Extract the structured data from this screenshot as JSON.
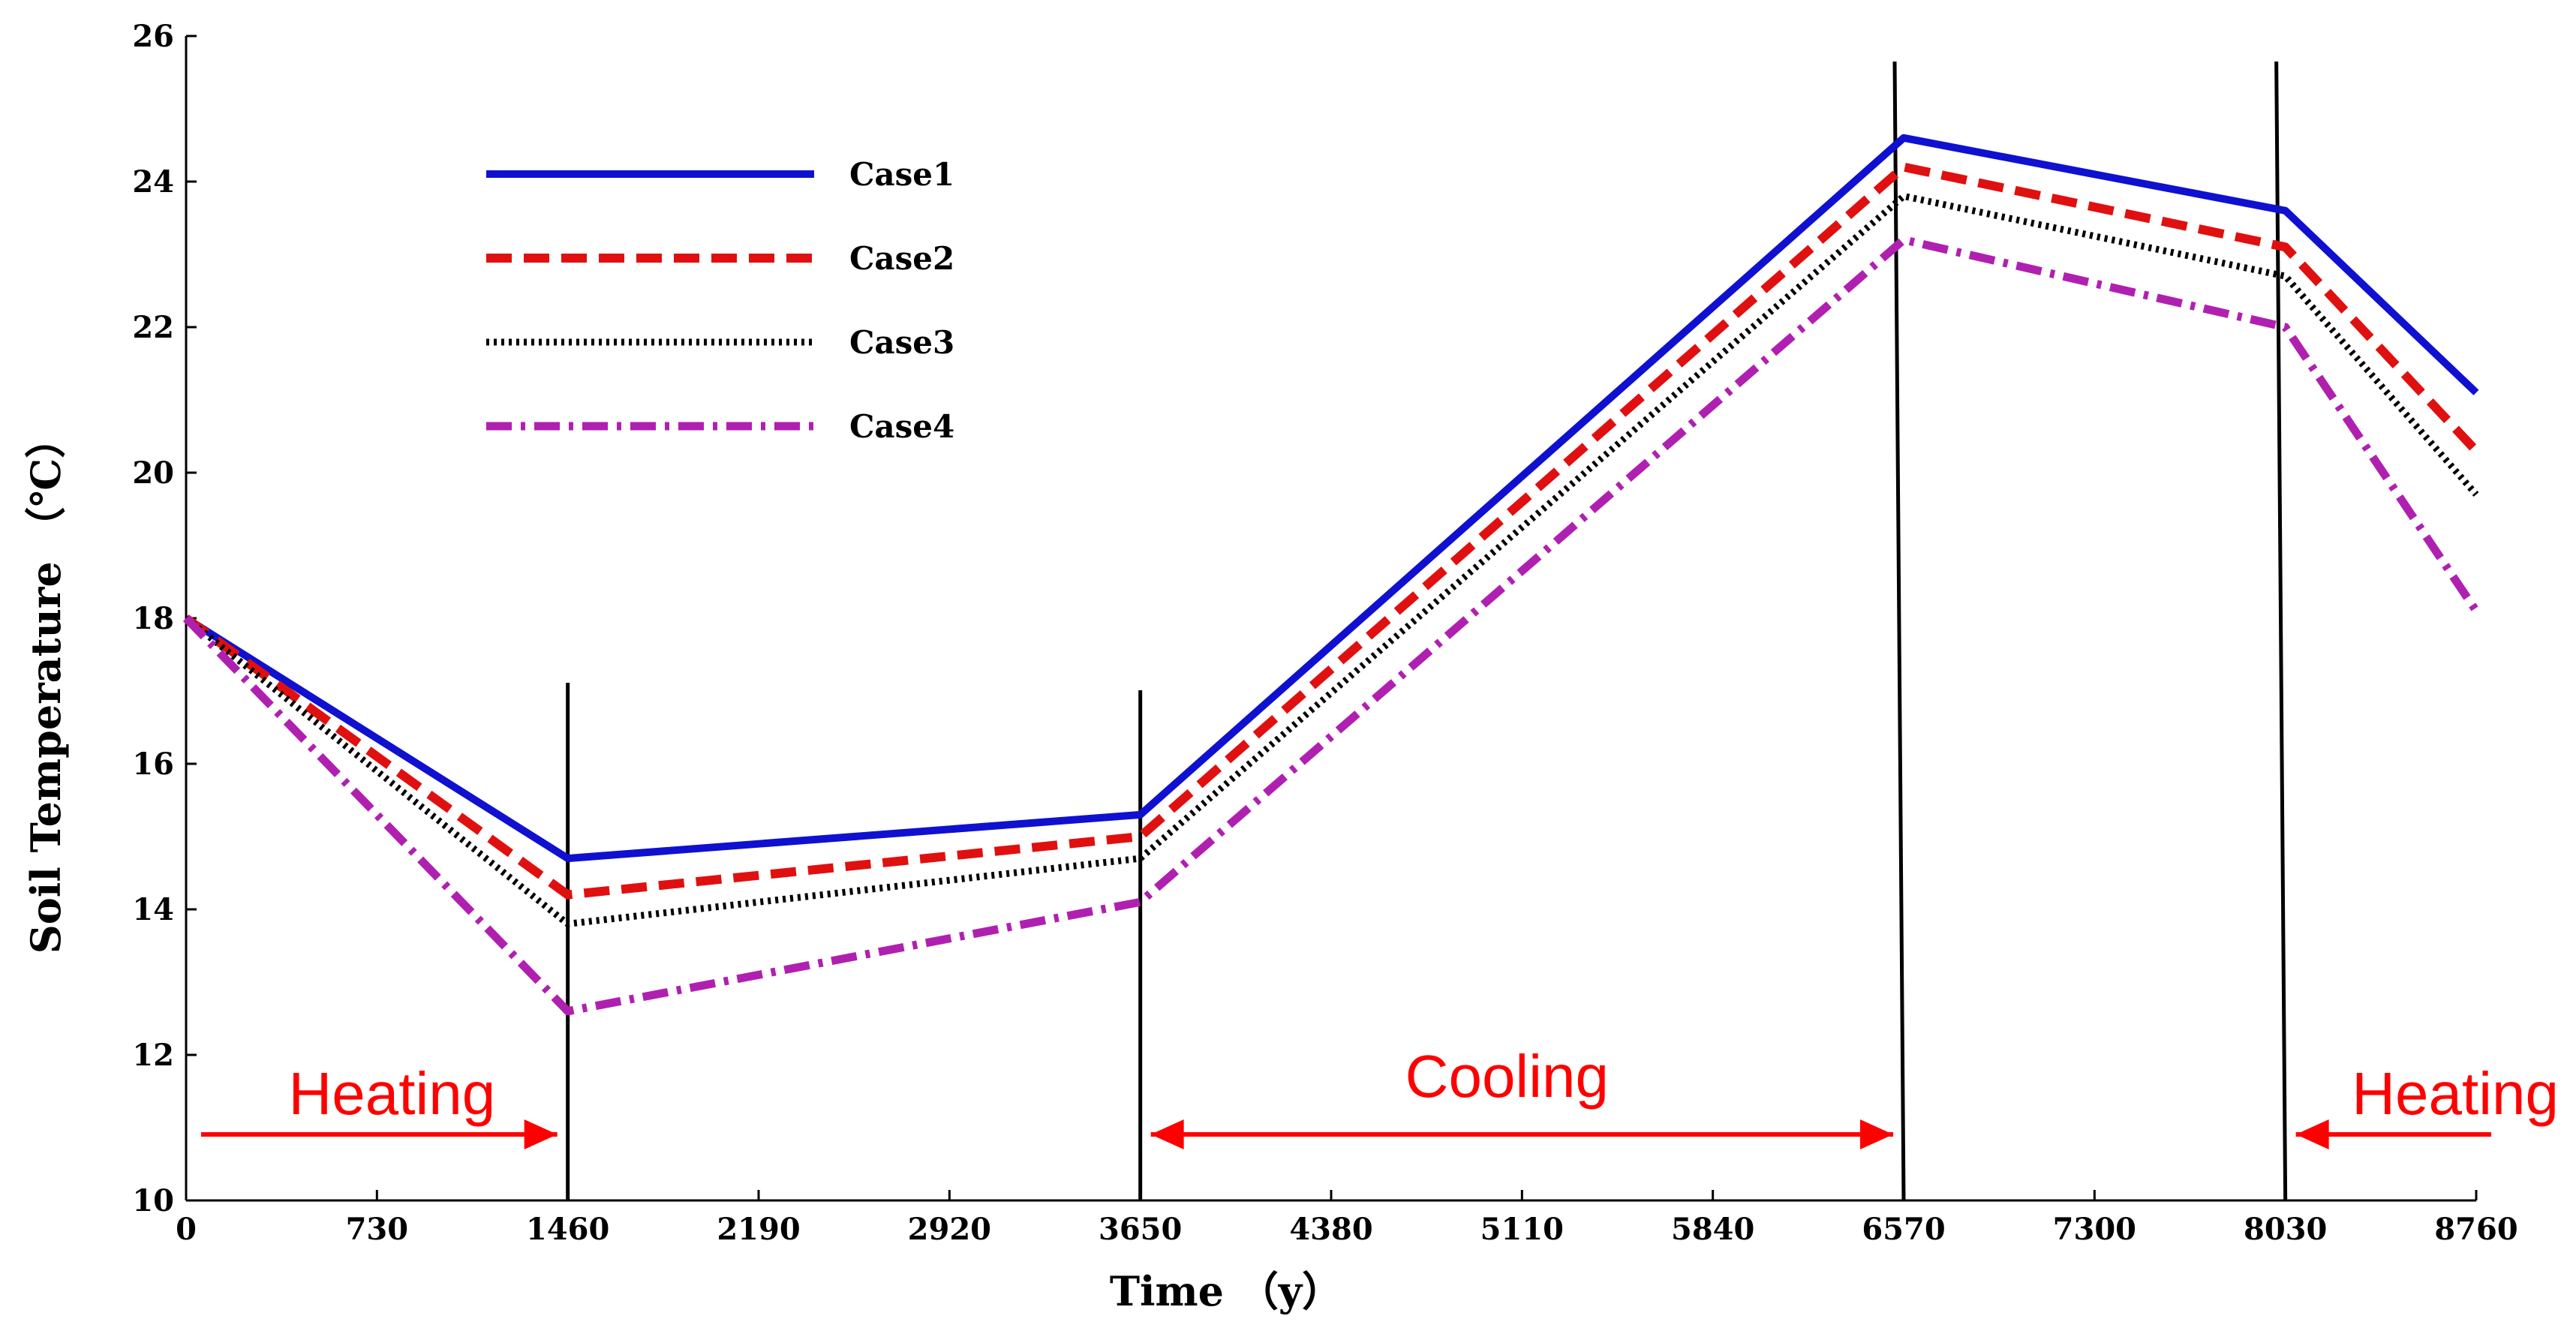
{
  "chart_data": {
    "type": "line",
    "title": "",
    "xlabel": "Time （y）",
    "ylabel": "Soil Temperature （℃）",
    "xlim": [
      0,
      8760
    ],
    "ylim": [
      10,
      26
    ],
    "x_ticks": [
      "0",
      "730",
      "1460",
      "2190",
      "2920",
      "3650",
      "4380",
      "5110",
      "5840",
      "6570",
      "7300",
      "8030",
      "8760"
    ],
    "y_ticks": [
      "10",
      "12",
      "14",
      "16",
      "18",
      "20",
      "22",
      "24",
      "26"
    ],
    "x": [
      0,
      1460,
      3650,
      6570,
      8030,
      8760
    ],
    "series": [
      {
        "name": "Case1",
        "color": "#1010d0",
        "style": "solid",
        "values": [
          18.0,
          14.7,
          15.3,
          24.6,
          23.6,
          21.1
        ]
      },
      {
        "name": "Case2",
        "color": "#e01010",
        "style": "dashed",
        "values": [
          18.0,
          14.2,
          15.0,
          24.2,
          23.1,
          20.3
        ]
      },
      {
        "name": "Case3",
        "color": "#000000",
        "style": "dotted",
        "values": [
          18.0,
          13.8,
          14.7,
          23.8,
          22.7,
          19.7
        ]
      },
      {
        "name": "Case4",
        "color": "#b020b0",
        "style": "dashdot",
        "values": [
          18.0,
          12.6,
          14.1,
          23.2,
          22.0,
          18.1
        ]
      }
    ],
    "boundaries": [
      1460,
      3650,
      6570,
      8030
    ],
    "annotations": [
      {
        "text": "Heating",
        "from": 0,
        "to": 1460,
        "arrow": "right"
      },
      {
        "text": "Cooling",
        "from": 3650,
        "to": 6570,
        "arrow": "both"
      },
      {
        "text": "Heating",
        "from": 8760,
        "to": 8030,
        "arrow": "left"
      }
    ],
    "legend_position": "top-left",
    "grid": false
  }
}
